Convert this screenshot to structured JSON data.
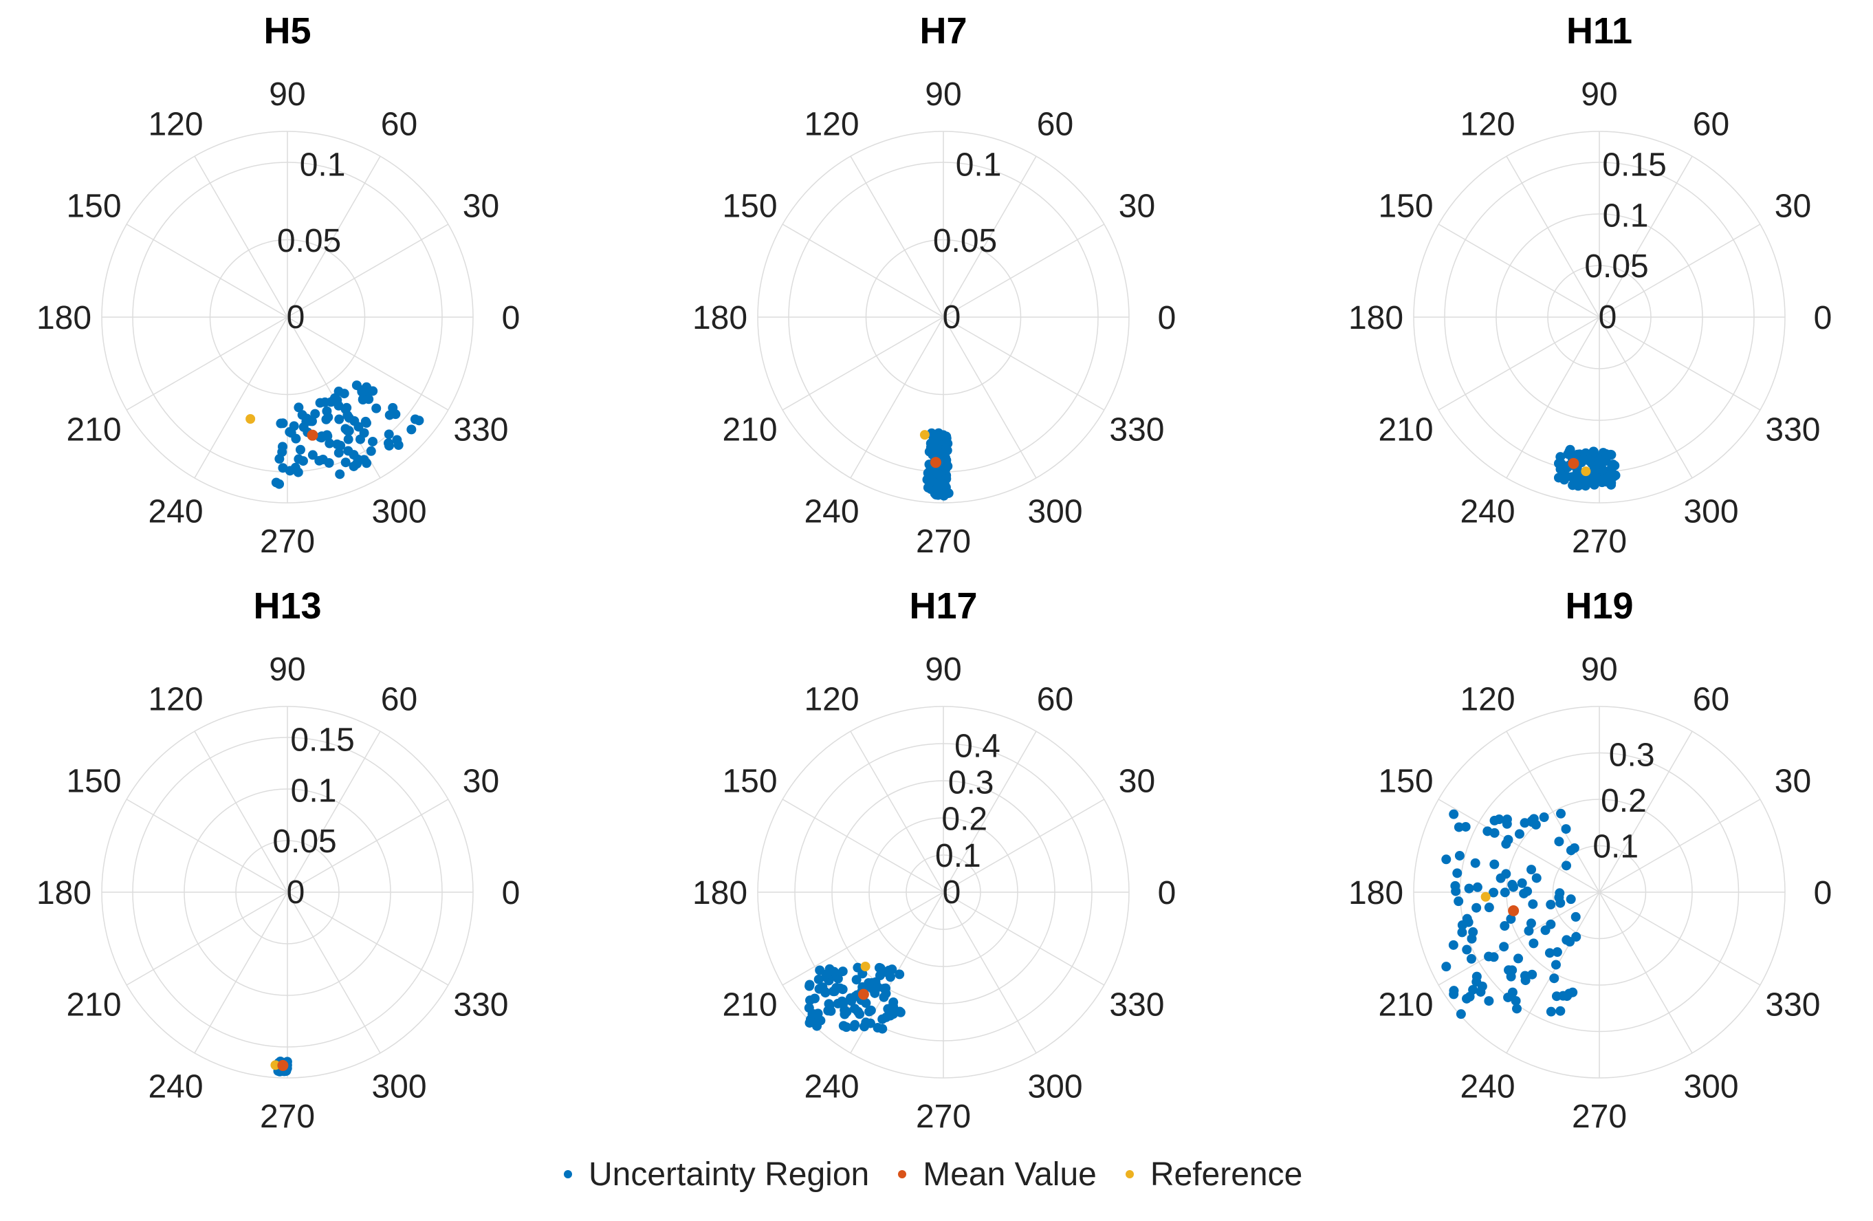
{
  "colors": {
    "uncertainty": "#0072BD",
    "mean": "#D95319",
    "reference": "#EDB120",
    "grid": "#dcdcdc",
    "text": "#222222"
  },
  "legend": {
    "uncertainty_label": "Uncertainty Region",
    "mean_label": "Mean Value",
    "reference_label": "Reference"
  },
  "chart_data": [
    {
      "type": "scatter",
      "subtype": "polar",
      "title": "H5",
      "theta_ticks": [
        "0",
        "30",
        "60",
        "90",
        "120",
        "150",
        "180",
        "210",
        "240",
        "270",
        "300",
        "330"
      ],
      "rlim": [
        0,
        0.12
      ],
      "r_ticks": [
        "0",
        "0.05",
        "0.1"
      ],
      "r_tick_values": [
        0,
        0.05,
        0.1
      ],
      "uncertainty_region": {
        "theta_range_deg": [
          266,
          322
        ],
        "r_range": [
          0.058,
          0.11
        ],
        "n_points": 100,
        "seed": 5
      },
      "mean": {
        "theta_deg": 282,
        "r": 0.078
      },
      "reference": {
        "theta_deg": 250,
        "r": 0.07
      }
    },
    {
      "type": "scatter",
      "subtype": "polar",
      "title": "H7",
      "theta_ticks": [
        "0",
        "30",
        "60",
        "90",
        "120",
        "150",
        "180",
        "210",
        "240",
        "270",
        "300",
        "330"
      ],
      "rlim": [
        0,
        0.12
      ],
      "r_ticks": [
        "0",
        "0.05",
        "0.1"
      ],
      "r_tick_values": [
        0,
        0.05,
        0.1
      ],
      "uncertainty_region": {
        "theta_range_deg": [
          264,
          272
        ],
        "r_range": [
          0.075,
          0.116
        ],
        "n_points": 100,
        "seed": 7
      },
      "mean": {
        "theta_deg": 267,
        "r": 0.094
      },
      "reference": {
        "theta_deg": 261,
        "r": 0.077
      }
    },
    {
      "type": "scatter",
      "subtype": "polar",
      "title": "H11",
      "theta_ticks": [
        "0",
        "30",
        "60",
        "90",
        "120",
        "150",
        "180",
        "210",
        "240",
        "270",
        "300",
        "330"
      ],
      "rlim": [
        0,
        0.18
      ],
      "r_ticks": [
        "0",
        "0.05",
        "0.1",
        "0.15"
      ],
      "r_tick_values": [
        0,
        0.05,
        0.1,
        0.15
      ],
      "uncertainty_region": {
        "theta_range_deg": [
          254,
          276
        ],
        "r_range": [
          0.13,
          0.165
        ],
        "n_points": 100,
        "seed": 11
      },
      "mean": {
        "theta_deg": 260,
        "r": 0.144
      },
      "reference": {
        "theta_deg": 265,
        "r": 0.15
      }
    },
    {
      "type": "scatter",
      "subtype": "polar",
      "title": "H13",
      "theta_ticks": [
        "0",
        "30",
        "60",
        "90",
        "120",
        "150",
        "180",
        "210",
        "240",
        "270",
        "300",
        "330"
      ],
      "rlim": [
        0,
        0.18
      ],
      "r_ticks": [
        "0",
        "0.05",
        "0.1",
        "0.15"
      ],
      "r_tick_values": [
        0,
        0.05,
        0.1,
        0.15
      ],
      "uncertainty_region": {
        "theta_range_deg": [
          267,
          270
        ],
        "r_range": [
          0.164,
          0.174
        ],
        "n_points": 60,
        "seed": 13
      },
      "mean": {
        "theta_deg": 268.5,
        "r": 0.168
      },
      "reference": {
        "theta_deg": 266,
        "r": 0.168
      }
    },
    {
      "type": "scatter",
      "subtype": "polar",
      "title": "H17",
      "theta_ticks": [
        "0",
        "30",
        "60",
        "90",
        "120",
        "150",
        "180",
        "210",
        "240",
        "270",
        "300",
        "330"
      ],
      "rlim": [
        0,
        0.5
      ],
      "r_ticks": [
        "0",
        "0.1",
        "0.2",
        "0.3",
        "0.4"
      ],
      "r_tick_values": [
        0,
        0.1,
        0.2,
        0.3,
        0.4
      ],
      "uncertainty_region": {
        "x_range": [
          -0.365,
          -0.115
        ],
        "y_range": [
          -0.37,
          -0.2
        ],
        "n_points": 110,
        "seed": 17
      },
      "mean": {
        "x": -0.215,
        "y": -0.275
      },
      "reference": {
        "x": -0.21,
        "y": -0.2
      }
    },
    {
      "type": "scatter",
      "subtype": "polar",
      "title": "H19",
      "theta_ticks": [
        "0",
        "30",
        "60",
        "90",
        "120",
        "150",
        "180",
        "210",
        "240",
        "270",
        "300",
        "330"
      ],
      "rlim": [
        0,
        0.4
      ],
      "r_ticks": [
        "0.1",
        "0.2",
        "0.3"
      ],
      "r_tick_values": [
        0.1,
        0.2,
        0.3
      ],
      "uncertainty_region": {
        "x_range": [
          -0.33,
          -0.05
        ],
        "y_range": [
          -0.27,
          0.17
        ],
        "n_points": 110,
        "seed": 19
      },
      "mean": {
        "x": -0.185,
        "y": -0.04
      },
      "reference": {
        "x": -0.245,
        "y": -0.01
      }
    }
  ]
}
